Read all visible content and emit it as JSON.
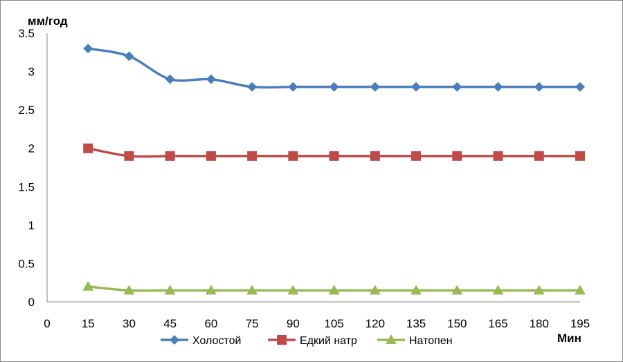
{
  "chart_data": {
    "type": "line",
    "title": "",
    "ylabel": "мм/год",
    "xlabel": "Мин",
    "xlim": [
      0,
      195
    ],
    "ylim": [
      0,
      3.5
    ],
    "x_ticks": [
      "0",
      "15",
      "30",
      "45",
      "60",
      "75",
      "90",
      "105",
      "120",
      "135",
      "150",
      "165",
      "180",
      "195"
    ],
    "y_ticks": [
      "0",
      "0.5",
      "1",
      "1.5",
      "2",
      "2.5",
      "3",
      "3.5"
    ],
    "x": [
      15,
      30,
      45,
      60,
      75,
      90,
      105,
      120,
      135,
      150,
      165,
      180,
      195
    ],
    "series": [
      {
        "name": "Холостой",
        "color": "#4a7ebb",
        "marker": "diamond",
        "values": [
          3.3,
          3.2,
          2.9,
          2.9,
          2.8,
          2.8,
          2.8,
          2.8,
          2.8,
          2.8,
          2.8,
          2.8,
          2.8
        ]
      },
      {
        "name": "Едкий натр",
        "color": "#be4b48",
        "marker": "square",
        "values": [
          2.0,
          1.9,
          1.9,
          1.9,
          1.9,
          1.9,
          1.9,
          1.9,
          1.9,
          1.9,
          1.9,
          1.9,
          1.9
        ]
      },
      {
        "name": "Натопен",
        "color": "#98b954",
        "marker": "triangle",
        "values": [
          0.2,
          0.15,
          0.15,
          0.15,
          0.15,
          0.15,
          0.15,
          0.15,
          0.15,
          0.15,
          0.15,
          0.15,
          0.15
        ]
      }
    ],
    "grid": false,
    "legend": "bottom"
  }
}
